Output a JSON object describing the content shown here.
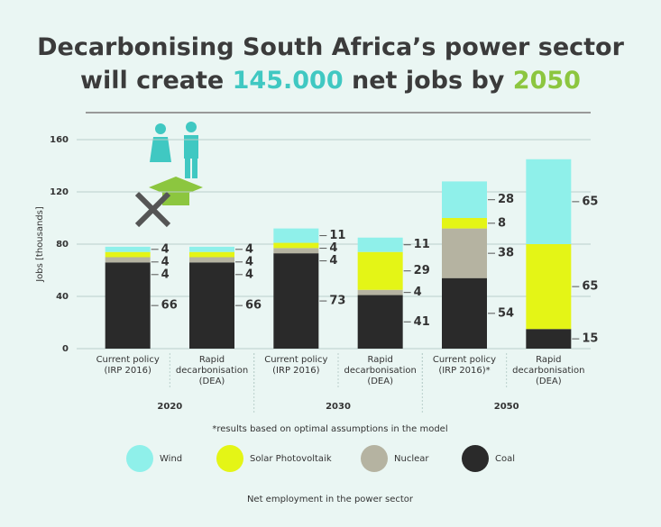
{
  "chart_data": {
    "type": "stacked_bar",
    "title": {
      "line1": "Decarbonising South Africa’s power sector",
      "line2": [
        "will create",
        "145.000",
        "net jobs by",
        "2050"
      ]
    },
    "y_label": "Jobs [thousands]",
    "ylim": [
      0,
      160
    ],
    "yticks": [
      0,
      40,
      80,
      120,
      160
    ],
    "grid": true,
    "categories": [
      [
        "Current policy",
        "(IRP 2016)"
      ],
      [
        "Rapid",
        "decarbonisation",
        "(DEA)"
      ],
      [
        "Current policy",
        "(IRP 2016)"
      ],
      [
        "Rapid",
        "decarbonisation",
        "(DEA)"
      ],
      [
        "Current policy",
        "(IRP 2016)*"
      ],
      [
        "Rapid",
        "decarbonisation",
        "(DEA)"
      ]
    ],
    "groups": [
      "2020",
      "2030",
      "2050"
    ],
    "series": [
      {
        "name": "Wind",
        "color": "#8ff0ea",
        "values": [
          4,
          4,
          11,
          11,
          28,
          65
        ]
      },
      {
        "name": "Solar Photovoltaik",
        "color": "#e4f516",
        "values": [
          4,
          4,
          4,
          29,
          8,
          65
        ]
      },
      {
        "name": "Nuclear",
        "color": "#b5b3a1",
        "values": [
          4,
          4,
          4,
          4,
          38,
          null
        ]
      },
      {
        "name": "Coal",
        "color": "#2a2a2a",
        "values": [
          66,
          66,
          73,
          41,
          54,
          15
        ]
      }
    ],
    "footnote": "*results based on optimal assumptions in the model",
    "caption": "Net employment in the power sector"
  }
}
